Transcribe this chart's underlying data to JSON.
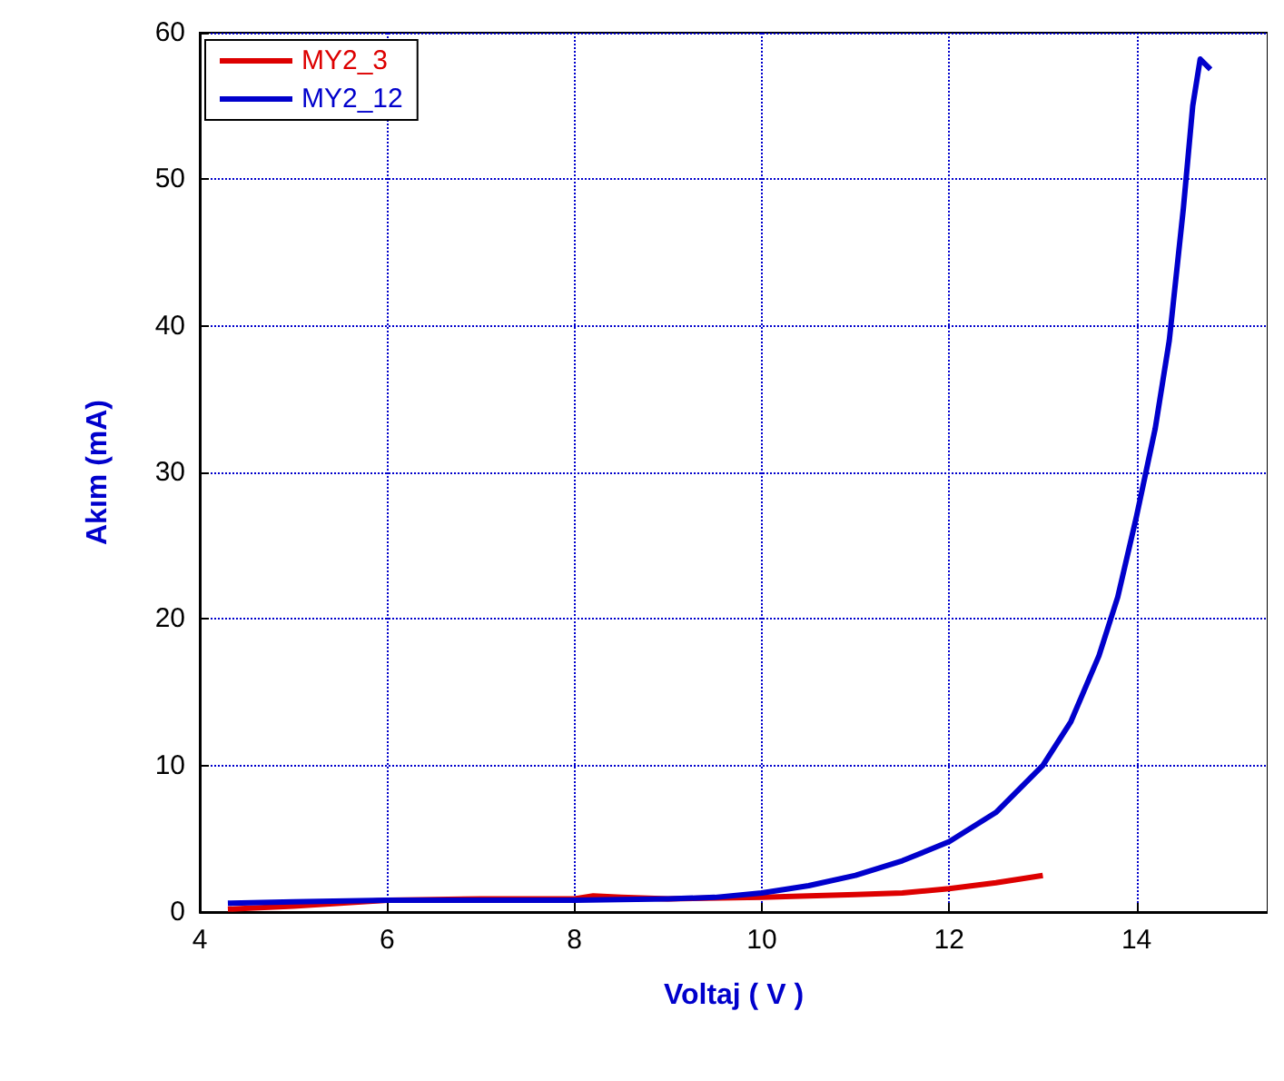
{
  "chart_data": {
    "type": "line",
    "xlabel": "Voltaj ( V )",
    "ylabel": "Akım (mA)",
    "xlim": [
      4,
      15.4
    ],
    "xticks": [
      4,
      6,
      8,
      10,
      12,
      14
    ],
    "ylim": [
      0,
      60
    ],
    "yticks": [
      0,
      10,
      20,
      30,
      40,
      50,
      60
    ],
    "grid": true,
    "legend": "top left",
    "marker": "none",
    "line_style": "solid",
    "series": [
      {
        "name": "MY2_3",
        "color": "#dd0000",
        "x": [
          4.3,
          5,
          6,
          7,
          8,
          8.2,
          8.5,
          9,
          10,
          11,
          11.5,
          12,
          12.5,
          13
        ],
        "values": [
          0.2,
          0.4,
          0.8,
          0.9,
          0.9,
          1.1,
          1.0,
          0.9,
          1.0,
          1.2,
          1.3,
          1.6,
          2.0,
          2.5
        ]
      },
      {
        "name": "MY2_12",
        "color": "#0000cc",
        "x": [
          4.3,
          5,
          6,
          7,
          8,
          9,
          9.5,
          10,
          10.5,
          11,
          11.5,
          12,
          12.5,
          13,
          13.3,
          13.6,
          13.8,
          14,
          14.2,
          14.35,
          14.5,
          14.6,
          14.68,
          14.79
        ],
        "values": [
          0.6,
          0.7,
          0.8,
          0.8,
          0.8,
          0.9,
          1.0,
          1.3,
          1.8,
          2.5,
          3.5,
          4.8,
          6.8,
          10,
          13,
          17.5,
          21.5,
          27,
          33,
          39,
          48,
          55,
          58.2,
          57.5
        ]
      }
    ]
  }
}
